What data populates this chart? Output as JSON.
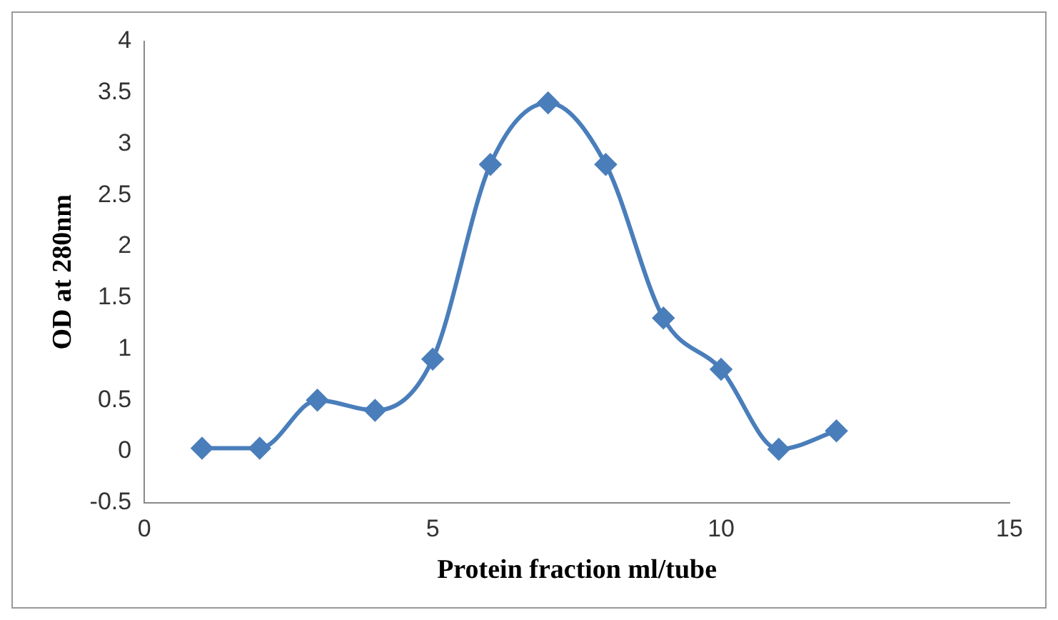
{
  "chart_data": {
    "type": "line",
    "xlabel": "Protein fraction ml/tube",
    "ylabel": "OD at 280nm",
    "x": [
      1,
      2,
      3,
      4,
      5,
      6,
      7,
      8,
      9,
      10,
      11,
      12
    ],
    "series": [
      {
        "color": "#4a7ebb",
        "values": [
          0.03,
          0.03,
          0.5,
          0.4,
          0.9,
          2.8,
          3.4,
          2.8,
          1.3,
          0.8,
          0.02,
          0.2
        ]
      }
    ],
    "xlim": [
      0,
      15
    ],
    "xticks": [
      0,
      5,
      10,
      15
    ],
    "ylim": [
      -0.5,
      4
    ],
    "yticks": [
      -0.5,
      0,
      0.5,
      1,
      1.5,
      2,
      2.5,
      3,
      3.5,
      4
    ],
    "grid": false,
    "legend": false,
    "marker": "diamond",
    "line_style": "solid"
  }
}
